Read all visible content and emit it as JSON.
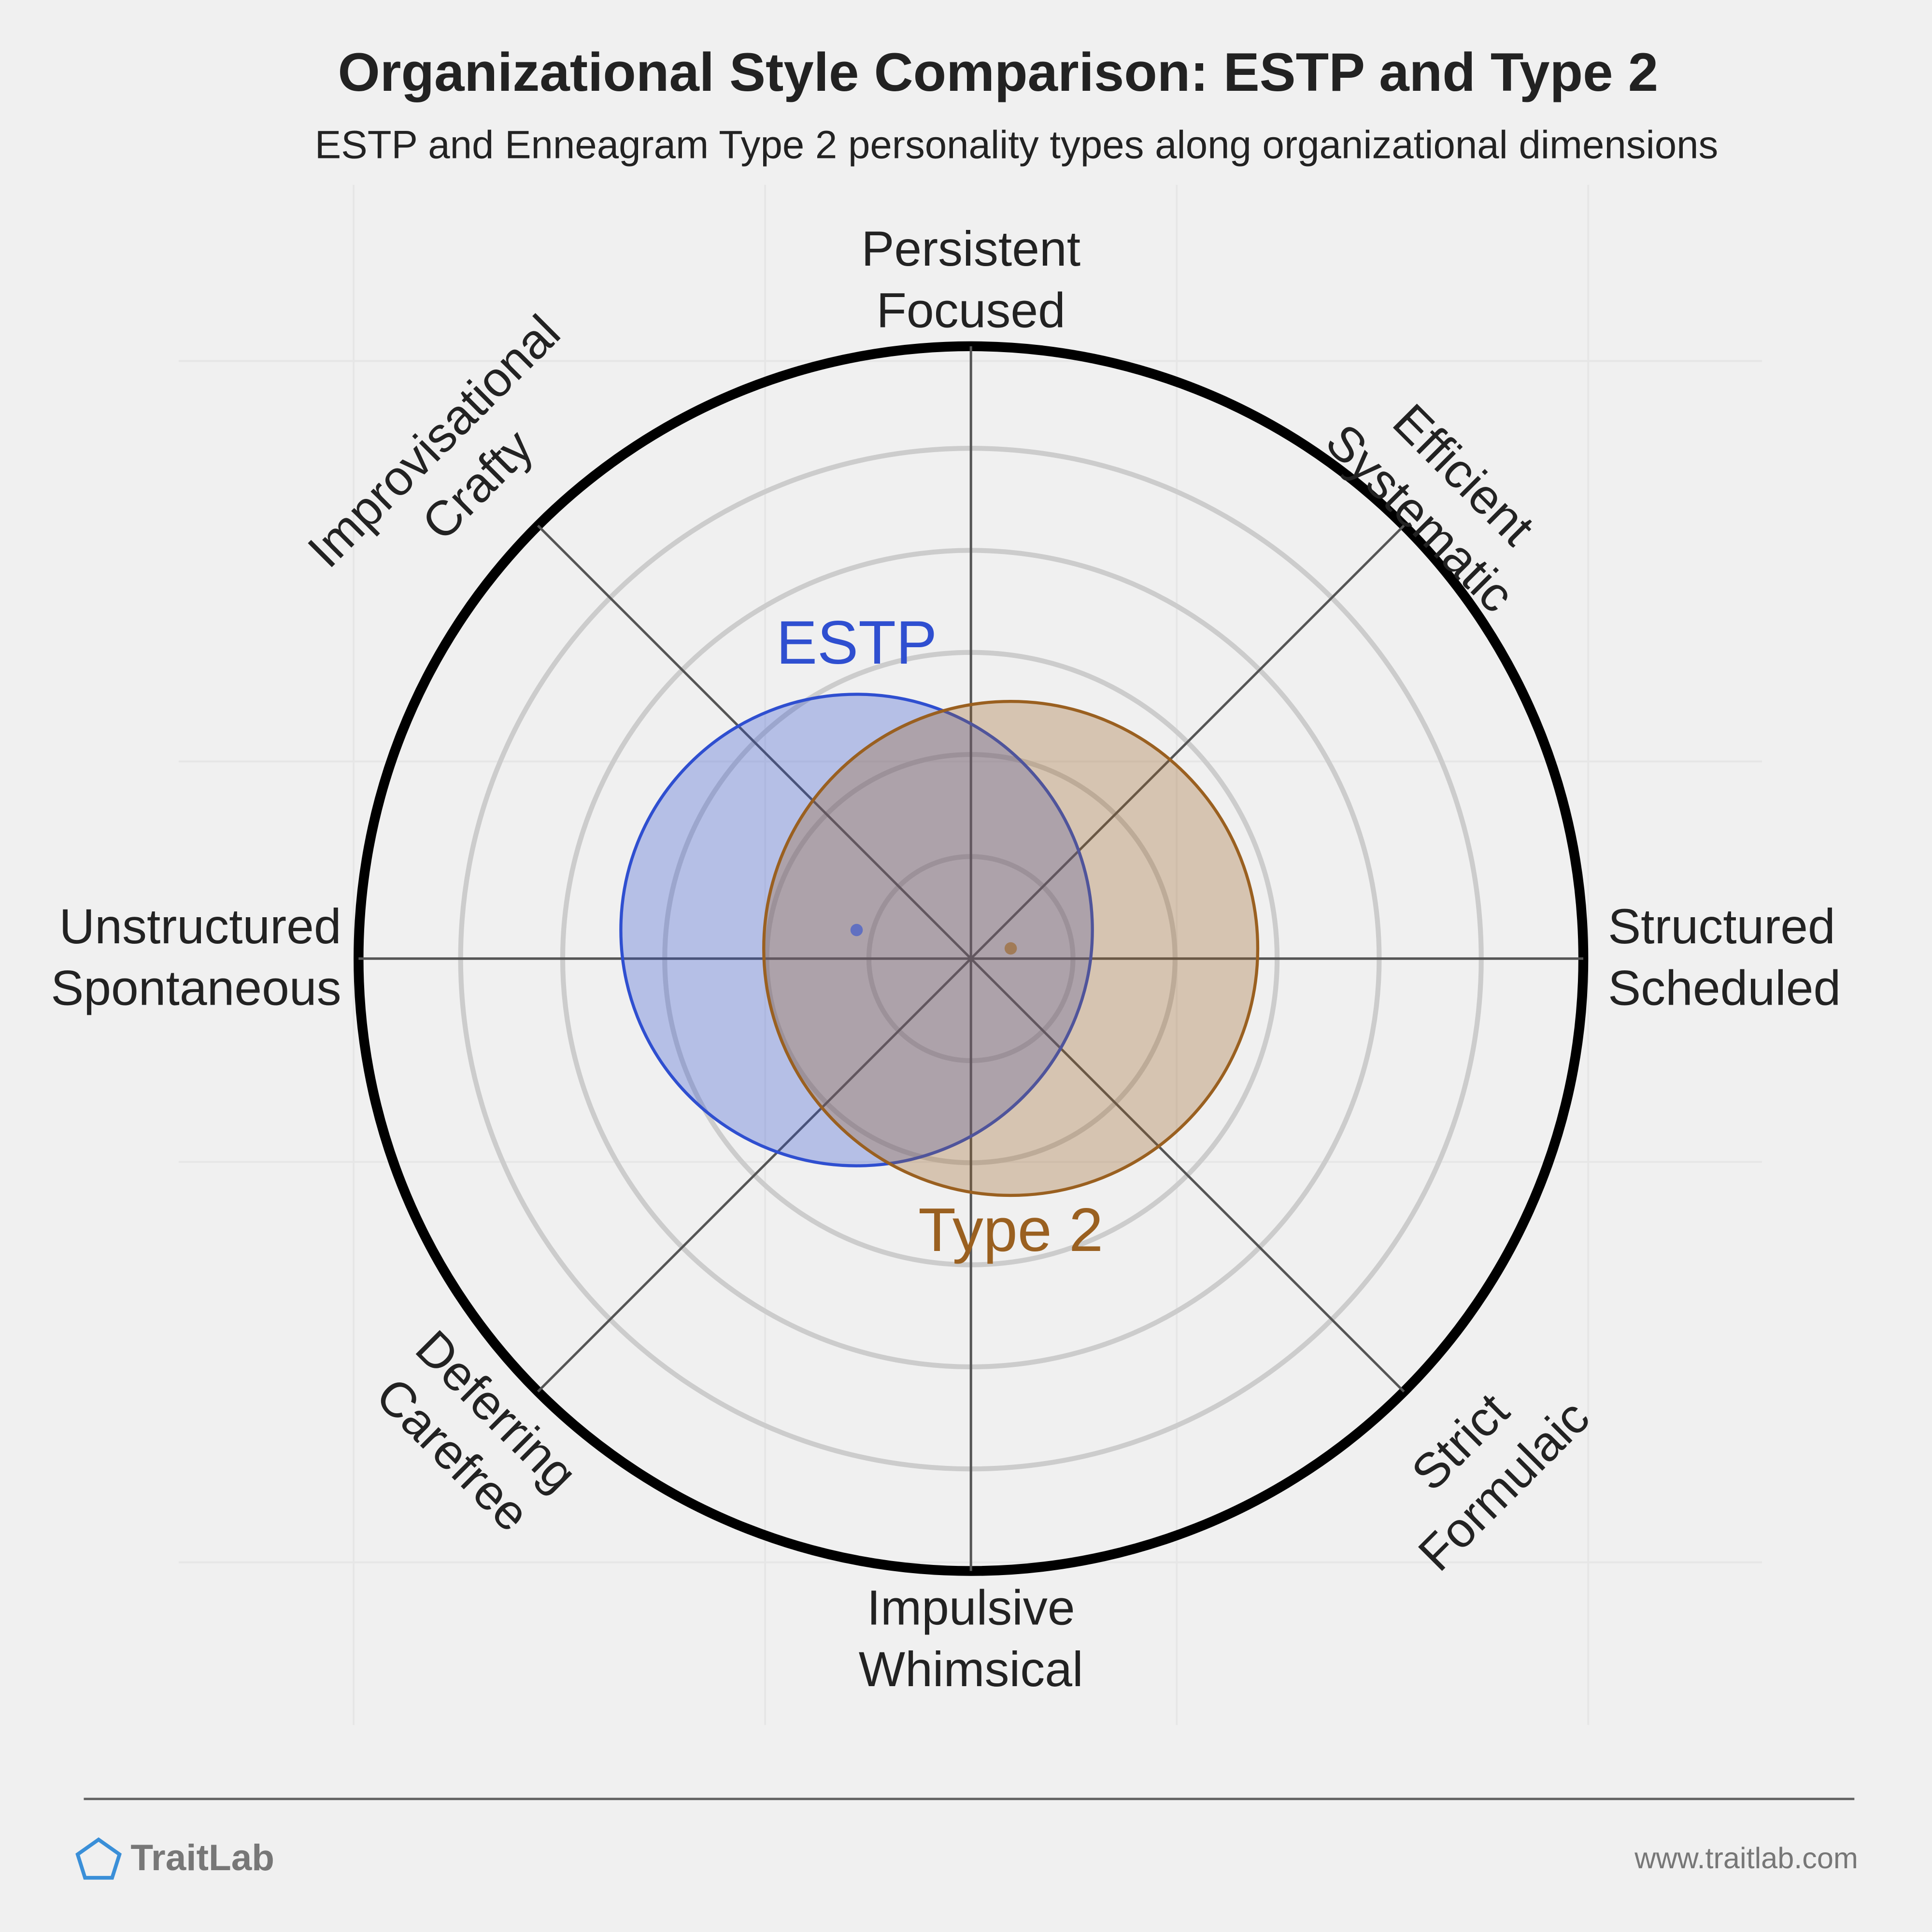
{
  "chart_data": {
    "type": "circle-overlap",
    "title": "Organizational Style Comparison: ESTP and Type 2",
    "subtitle": "ESTP and Enneagram Type 2 personality types along organizational dimensions",
    "rlim": [
      0,
      6
    ],
    "rticks": [
      1,
      2,
      3,
      4,
      5,
      6
    ],
    "axes": [
      {
        "lines": [
          "Persistent",
          "Focused"
        ]
      },
      {
        "lines": [
          "Efficient",
          "Systematic"
        ]
      },
      {
        "lines": [
          "Structured",
          "Scheduled"
        ]
      },
      {
        "lines": [
          "Strict",
          "Formulaic"
        ]
      },
      {
        "lines": [
          "Impulsive",
          "Whimsical"
        ]
      },
      {
        "lines": [
          "Deferring",
          "Carefree"
        ]
      },
      {
        "lines": [
          "Unstructured",
          "Spontaneous"
        ]
      },
      {
        "lines": [
          "Improvisational",
          "Crafty"
        ]
      }
    ],
    "series": [
      {
        "name": "ESTP",
        "color": "#2f4fd0",
        "x": -1.12,
        "y": 0.28,
        "r": 2.31
      },
      {
        "name": "Type 2",
        "color": "#9a6020",
        "x": 0.39,
        "y": 0.1,
        "r": 2.42
      }
    ],
    "footer": {
      "brand": "TraitLab",
      "url": "www.traitlab.com"
    }
  }
}
